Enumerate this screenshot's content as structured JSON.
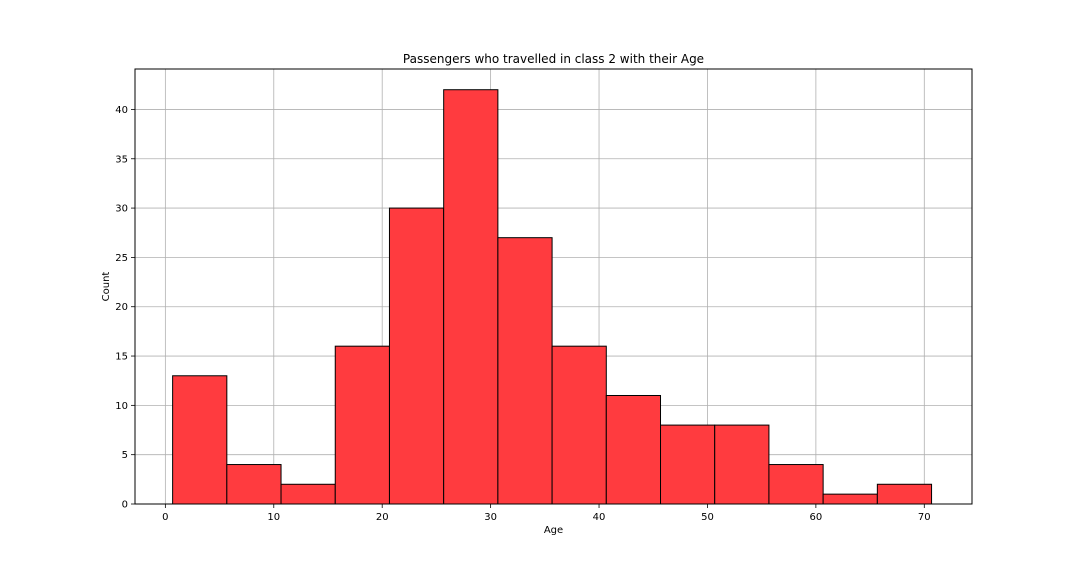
{
  "chart_data": {
    "type": "bar",
    "title": "Passengers who travelled in class 2 with their Age",
    "xlabel": "Age",
    "ylabel": "Count",
    "xlim": [
      -2.8,
      74.4
    ],
    "ylim": [
      0,
      44.1
    ],
    "x_ticks": [
      0,
      10,
      20,
      30,
      40,
      50,
      60,
      70
    ],
    "y_ticks": [
      0,
      5,
      10,
      15,
      20,
      25,
      30,
      35,
      40
    ],
    "grid": true,
    "bar_color": "#ff3b3f",
    "edge_color": "#000000",
    "bins": [
      {
        "start": 0.67,
        "end": 5.67,
        "count": 13
      },
      {
        "start": 5.67,
        "end": 10.67,
        "count": 4
      },
      {
        "start": 10.67,
        "end": 15.67,
        "count": 2
      },
      {
        "start": 15.67,
        "end": 20.67,
        "count": 16
      },
      {
        "start": 20.67,
        "end": 25.67,
        "count": 30
      },
      {
        "start": 25.67,
        "end": 30.67,
        "count": 42
      },
      {
        "start": 30.67,
        "end": 35.67,
        "count": 27
      },
      {
        "start": 35.67,
        "end": 40.67,
        "count": 16
      },
      {
        "start": 40.67,
        "end": 45.67,
        "count": 11
      },
      {
        "start": 45.67,
        "end": 50.67,
        "count": 8
      },
      {
        "start": 50.67,
        "end": 55.67,
        "count": 8
      },
      {
        "start": 55.67,
        "end": 60.67,
        "count": 4
      },
      {
        "start": 60.67,
        "end": 65.67,
        "count": 1
      },
      {
        "start": 65.67,
        "end": 70.67,
        "count": 2
      }
    ]
  }
}
